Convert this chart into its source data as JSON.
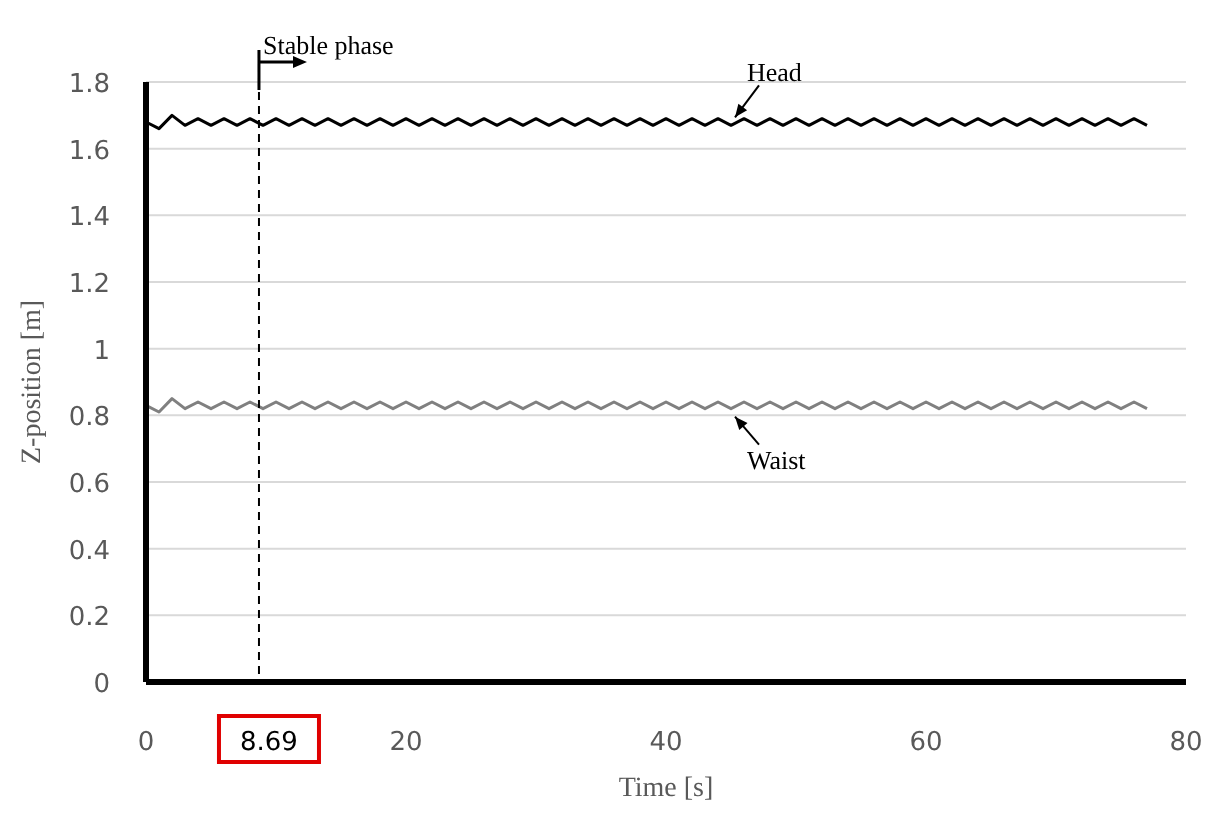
{
  "chart_data": {
    "type": "line",
    "xlabel": "Time [s]",
    "ylabel": "Z-position [m]",
    "x": [
      0,
      1,
      2,
      3,
      4,
      5,
      6,
      7,
      8,
      9,
      10,
      11,
      12,
      13,
      14,
      15,
      16,
      17,
      18,
      19,
      20,
      21,
      22,
      23,
      24,
      25,
      26,
      27,
      28,
      29,
      30,
      31,
      32,
      33,
      34,
      35,
      36,
      37,
      38,
      39,
      40,
      41,
      42,
      43,
      44,
      45,
      46,
      47,
      48,
      49,
      50,
      51,
      52,
      53,
      54,
      55,
      56,
      57,
      58,
      59,
      60,
      61,
      62,
      63,
      64,
      65,
      66,
      67,
      68,
      69,
      70,
      71,
      72,
      73,
      74,
      75,
      76,
      77
    ],
    "series": [
      {
        "color": "#000000",
        "values": [
          1.68,
          1.66,
          1.7,
          1.67,
          1.69,
          1.67,
          1.69,
          1.67,
          1.69,
          1.67,
          1.69,
          1.67,
          1.69,
          1.67,
          1.69,
          1.67,
          1.69,
          1.67,
          1.69,
          1.67,
          1.69,
          1.67,
          1.69,
          1.67,
          1.69,
          1.67,
          1.69,
          1.67,
          1.69,
          1.67,
          1.69,
          1.67,
          1.69,
          1.67,
          1.69,
          1.67,
          1.69,
          1.67,
          1.69,
          1.67,
          1.69,
          1.67,
          1.69,
          1.67,
          1.69,
          1.67,
          1.69,
          1.67,
          1.69,
          1.67,
          1.69,
          1.67,
          1.69,
          1.67,
          1.69,
          1.67,
          1.69,
          1.67,
          1.69,
          1.67,
          1.69,
          1.67,
          1.69,
          1.67,
          1.69,
          1.67,
          1.69,
          1.67,
          1.69,
          1.67,
          1.69,
          1.67,
          1.69,
          1.67,
          1.69,
          1.67,
          1.69,
          1.67
        ]
      },
      {
        "color": "#808080",
        "values": [
          0.83,
          0.81,
          0.85,
          0.82,
          0.84,
          0.82,
          0.84,
          0.82,
          0.84,
          0.82,
          0.84,
          0.82,
          0.84,
          0.82,
          0.84,
          0.82,
          0.84,
          0.82,
          0.84,
          0.82,
          0.84,
          0.82,
          0.84,
          0.82,
          0.84,
          0.82,
          0.84,
          0.82,
          0.84,
          0.82,
          0.84,
          0.82,
          0.84,
          0.82,
          0.84,
          0.82,
          0.84,
          0.82,
          0.84,
          0.82,
          0.84,
          0.82,
          0.84,
          0.82,
          0.84,
          0.82,
          0.84,
          0.82,
          0.84,
          0.82,
          0.84,
          0.82,
          0.84,
          0.82,
          0.84,
          0.82,
          0.84,
          0.82,
          0.84,
          0.82,
          0.84,
          0.82,
          0.84,
          0.82,
          0.84,
          0.82,
          0.84,
          0.82,
          0.84,
          0.82,
          0.84,
          0.82,
          0.84,
          0.82,
          0.84,
          0.82,
          0.84,
          0.82
        ]
      }
    ],
    "xlim": [
      0,
      80
    ],
    "xticks": [
      0,
      20,
      40,
      60,
      80
    ],
    "ylim": [
      0,
      1.8
    ],
    "yticks": [
      0,
      0.2,
      0.4,
      0.6,
      0.8,
      1,
      1.2,
      1.4,
      1.6,
      1.8
    ],
    "grid": "y",
    "marker": "none",
    "line_style": "solid",
    "ref_lines": [
      {
        "axis": "x",
        "value": 8.69,
        "label": "8.69",
        "color": "#000000",
        "line_style": "dashed"
      }
    ],
    "annotations": [
      "Stable phase",
      "Head",
      "Waist"
    ]
  }
}
